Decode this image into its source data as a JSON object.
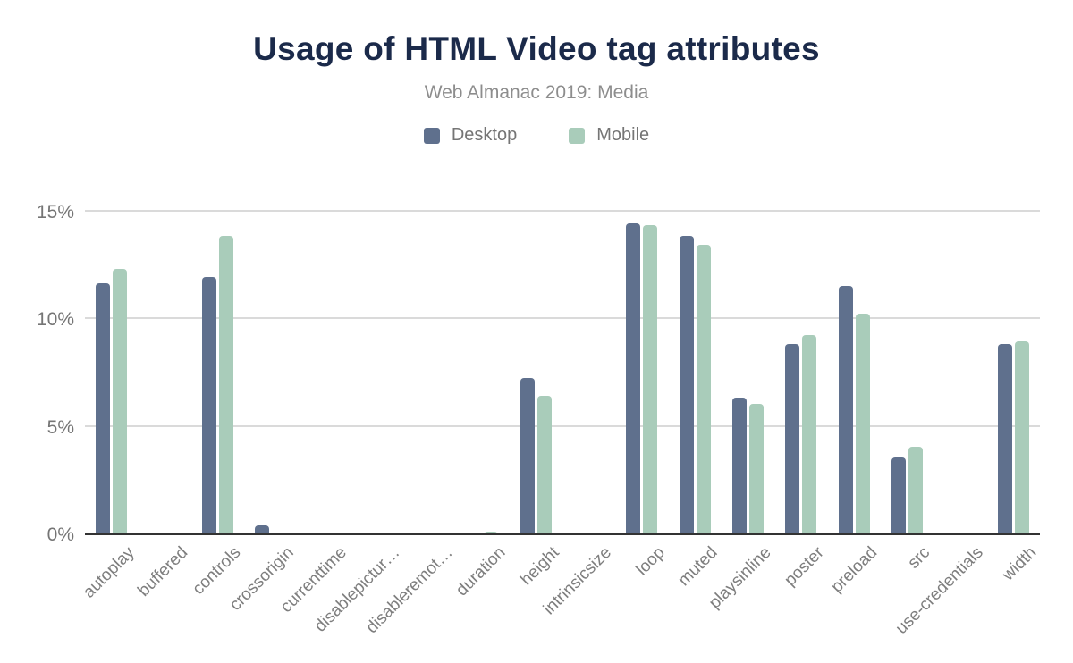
{
  "title": "Usage of HTML Video tag attributes",
  "subtitle": "Web Almanac 2019: Media",
  "colors": {
    "title": "#1b2a4a",
    "desktop": "#5f708d",
    "mobile": "#a9ccba",
    "gridline": "#dadada",
    "baseline": "#333333",
    "label_gray": "#757575"
  },
  "legend": [
    {
      "label": "Desktop",
      "color": "#5f708d"
    },
    {
      "label": "Mobile",
      "color": "#a9ccba"
    }
  ],
  "y_axis": {
    "max": 15,
    "ticks": [
      {
        "value": 15,
        "label": "15%"
      },
      {
        "value": 10,
        "label": "10%"
      },
      {
        "value": 5,
        "label": "5%"
      },
      {
        "value": 0,
        "label": "0%"
      }
    ]
  },
  "chart_data": {
    "type": "bar",
    "title": "Usage of HTML Video tag attributes",
    "subtitle": "Web Almanac 2019: Media",
    "xlabel": "",
    "ylabel": "",
    "ylim": [
      0,
      15
    ],
    "yticks": [
      0,
      5,
      10,
      15
    ],
    "grid": true,
    "legend_position": "top",
    "categories": [
      "autoplay",
      "buffered",
      "controls",
      "crossorigin",
      "currenttime",
      "disablepictur…",
      "disableremot…",
      "duration",
      "height",
      "intrinsicsize",
      "loop",
      "muted",
      "playsinline",
      "poster",
      "preload",
      "src",
      "use-credentials",
      "width"
    ],
    "series": [
      {
        "name": "Desktop",
        "color": "#5f708d",
        "values": [
          11.7,
          0,
          12.0,
          0.45,
          0.05,
          0.05,
          0.05,
          0.05,
          7.3,
          0,
          14.5,
          13.9,
          6.4,
          8.9,
          11.6,
          3.6,
          0,
          8.9
        ]
      },
      {
        "name": "Mobile",
        "color": "#a9ccba",
        "values": [
          12.4,
          0,
          13.9,
          0.12,
          0.05,
          0.08,
          0.08,
          0.15,
          6.5,
          0,
          14.4,
          13.5,
          6.1,
          9.3,
          10.3,
          4.1,
          0,
          9.0
        ]
      }
    ]
  }
}
